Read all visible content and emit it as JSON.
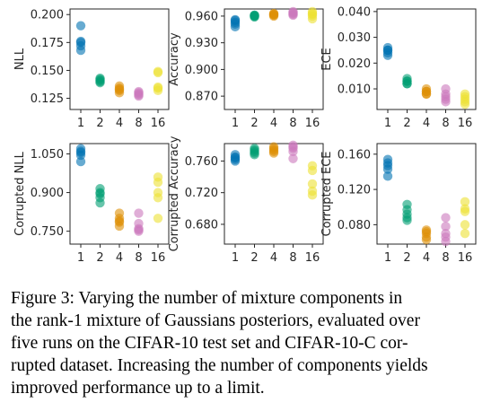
{
  "chart_data": [
    {
      "type": "scatter",
      "ylabel": "NLL",
      "categories": [
        "1",
        "2",
        "4",
        "8",
        "16"
      ],
      "yticks": [
        "0.125",
        "0.150",
        "0.175",
        "0.200"
      ],
      "ylim": [
        0.115,
        0.205
      ],
      "points": [
        [
          0.19,
          0.176,
          0.172,
          0.168,
          0.175
        ],
        [
          0.142,
          0.14,
          0.139,
          0.141,
          0.143
        ],
        [
          0.136,
          0.133,
          0.13,
          0.132,
          0.134
        ],
        [
          0.131,
          0.129,
          0.127,
          0.13,
          0.128
        ],
        [
          0.149,
          0.148,
          0.135,
          0.134,
          0.132
        ]
      ]
    },
    {
      "type": "scatter",
      "ylabel": "Accuracy",
      "categories": [
        "1",
        "2",
        "4",
        "8",
        "16"
      ],
      "yticks": [
        "0.870",
        "0.900",
        "0.930",
        "0.960"
      ],
      "ylim": [
        0.855,
        0.968
      ],
      "points": [
        [
          0.955,
          0.953,
          0.951,
          0.948,
          0.956
        ],
        [
          0.961,
          0.96,
          0.959,
          0.96,
          0.961
        ],
        [
          0.962,
          0.963,
          0.961,
          0.96,
          0.962
        ],
        [
          0.961,
          0.963,
          0.965,
          0.962,
          0.964
        ],
        [
          0.962,
          0.965,
          0.96,
          0.957,
          0.963
        ]
      ]
    },
    {
      "type": "scatter",
      "ylabel": "ECE",
      "categories": [
        "1",
        "2",
        "4",
        "8",
        "16"
      ],
      "yticks": [
        "0.010",
        "0.020",
        "0.030",
        "0.040"
      ],
      "ylim": [
        0.002,
        0.041
      ],
      "points": [
        [
          0.026,
          0.025,
          0.024,
          0.023,
          0.025
        ],
        [
          0.014,
          0.013,
          0.012,
          0.012,
          0.013
        ],
        [
          0.01,
          0.009,
          0.008,
          0.008,
          0.009
        ],
        [
          0.01,
          0.008,
          0.006,
          0.005,
          0.007
        ],
        [
          0.008,
          0.007,
          0.005,
          0.004,
          0.006
        ]
      ]
    },
    {
      "type": "scatter",
      "ylabel": "Corrupted NLL",
      "categories": [
        "1",
        "2",
        "4",
        "8",
        "16"
      ],
      "yticks": [
        "0.750",
        "0.900",
        "1.050"
      ],
      "ylim": [
        0.7,
        1.09
      ],
      "points": [
        [
          1.07,
          1.055,
          1.045,
          1.02,
          1.06
        ],
        [
          0.915,
          0.9,
          0.88,
          0.86,
          0.895
        ],
        [
          0.82,
          0.8,
          0.79,
          0.77,
          0.785
        ],
        [
          0.82,
          0.78,
          0.76,
          0.75,
          0.755
        ],
        [
          0.96,
          0.94,
          0.9,
          0.88,
          0.8
        ]
      ]
    },
    {
      "type": "scatter",
      "ylabel": "Corrupted Accuracy",
      "categories": [
        "1",
        "2",
        "4",
        "8",
        "16"
      ],
      "yticks": [
        "0.680",
        "0.720",
        "0.760"
      ],
      "ylim": [
        0.655,
        0.782
      ],
      "points": [
        [
          0.768,
          0.765,
          0.762,
          0.76,
          0.764
        ],
        [
          0.776,
          0.774,
          0.772,
          0.77,
          0.768
        ],
        [
          0.778,
          0.776,
          0.774,
          0.772,
          0.77
        ],
        [
          0.78,
          0.778,
          0.776,
          0.772,
          0.763
        ],
        [
          0.754,
          0.748,
          0.731,
          0.722,
          0.717
        ]
      ]
    },
    {
      "type": "scatter",
      "ylabel": "Corrupted ECE",
      "categories": [
        "1",
        "2",
        "4",
        "8",
        "16"
      ],
      "yticks": [
        "0.080",
        "0.120",
        "0.160"
      ],
      "ylim": [
        0.058,
        0.172
      ],
      "points": [
        [
          0.154,
          0.15,
          0.147,
          0.143,
          0.135
        ],
        [
          0.103,
          0.097,
          0.092,
          0.088,
          0.085
        ],
        [
          0.074,
          0.072,
          0.07,
          0.066,
          0.063
        ],
        [
          0.088,
          0.078,
          0.07,
          0.066,
          0.061
        ],
        [
          0.106,
          0.098,
          0.095,
          0.08,
          0.07
        ]
      ]
    }
  ],
  "colors": [
    "#0173b2",
    "#029e73",
    "#de8f05",
    "#cc78bc",
    "#ece133"
  ],
  "caption": {
    "lines": [
      "Figure 3:  Varying the number of mixture components in",
      "the rank-1 mixture of Gaussians posteriors, evaluated over",
      "five runs on the CIFAR-10 test set and CIFAR-10-C cor-",
      "rupted dataset. Increasing the number of components yields",
      "improved performance up to a limit."
    ]
  }
}
